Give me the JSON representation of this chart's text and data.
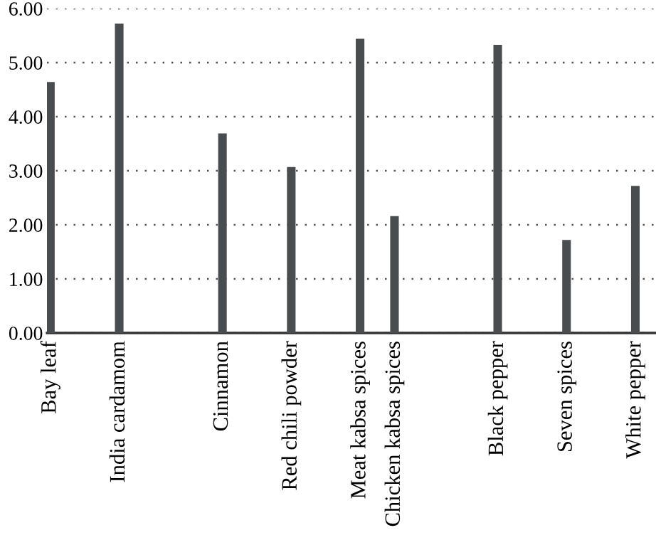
{
  "chart_data": {
    "type": "bar",
    "categories": [
      "Bay leaf",
      null,
      "India cardamom",
      null,
      null,
      "Cinnamon",
      null,
      "Red chili powder",
      null,
      "Meat kabsa spices",
      "Chicken kabsa spices",
      null,
      null,
      "Black pepper",
      null,
      "Seven spices",
      null,
      "White pepper"
    ],
    "values": [
      4.64,
      null,
      5.72,
      null,
      null,
      3.69,
      null,
      3.07,
      null,
      5.44,
      2.16,
      null,
      null,
      5.33,
      null,
      1.72,
      null,
      2.72
    ],
    "color": "#4a4d50",
    "ylim": [
      0,
      6
    ],
    "yticks": [
      {
        "value": 0,
        "label": "0.00"
      },
      {
        "value": 1,
        "label": "1.00"
      },
      {
        "value": 2,
        "label": "2.00"
      },
      {
        "value": 3,
        "label": "3.00"
      },
      {
        "value": 4,
        "label": "4.00"
      },
      {
        "value": 5,
        "label": "5.00"
      },
      {
        "value": 6,
        "label": "6.00"
      }
    ],
    "grid": "y"
  }
}
